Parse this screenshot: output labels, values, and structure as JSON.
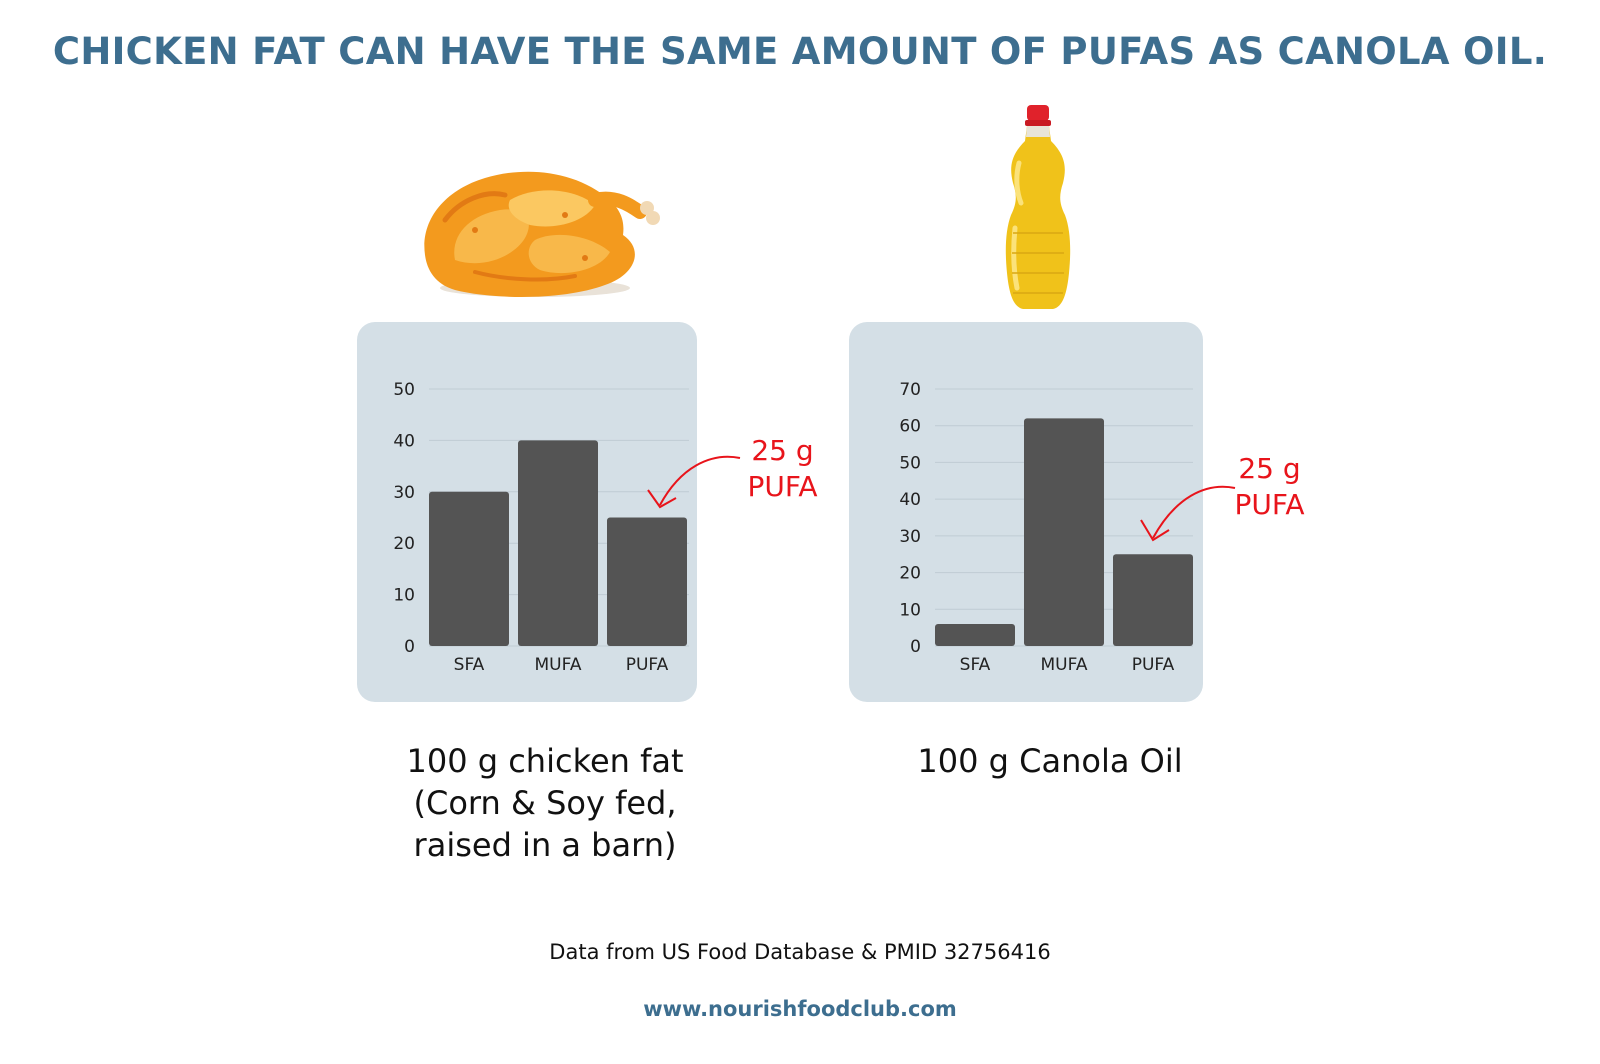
{
  "header": {
    "title": "CHICKEN FAT CAN HAVE THE SAME AMOUNT OF PUFAS AS CANOLA OIL."
  },
  "chart_data": [
    {
      "type": "bar",
      "categories": [
        "SFA",
        "MUFA",
        "PUFA"
      ],
      "values": [
        30,
        40,
        25
      ],
      "ylim": [
        0,
        50
      ],
      "yticks": [
        0,
        10,
        20,
        30,
        40,
        50
      ],
      "grid": true,
      "bar_color": "#545454",
      "annotation": {
        "value": "25 g",
        "label": "PUFA",
        "target": "PUFA",
        "color": "#e8141b"
      },
      "caption": [
        "100 g chicken fat",
        "(Corn & Soy fed,",
        "raised in a barn)"
      ]
    },
    {
      "type": "bar",
      "categories": [
        "SFA",
        "MUFA",
        "PUFA"
      ],
      "values": [
        6,
        62,
        25
      ],
      "ylim": [
        0,
        70
      ],
      "yticks": [
        0,
        10,
        20,
        30,
        40,
        50,
        60,
        70
      ],
      "grid": true,
      "bar_color": "#545454",
      "annotation": {
        "value": "25 g",
        "label": "PUFA",
        "target": "PUFA",
        "color": "#e8141b"
      },
      "caption": [
        "100 g Canola Oil"
      ]
    }
  ],
  "footer": {
    "source": "Data from US Food Database & PMID 32756416",
    "website": "www.nourishfoodclub.com"
  },
  "illustrations": {
    "left": "roast-chicken-icon",
    "right": "oil-bottle-icon"
  },
  "colors": {
    "title": "#3d6e8f",
    "panel": "#d4dfe6",
    "bar": "#545454",
    "annotation": "#e8141b"
  }
}
